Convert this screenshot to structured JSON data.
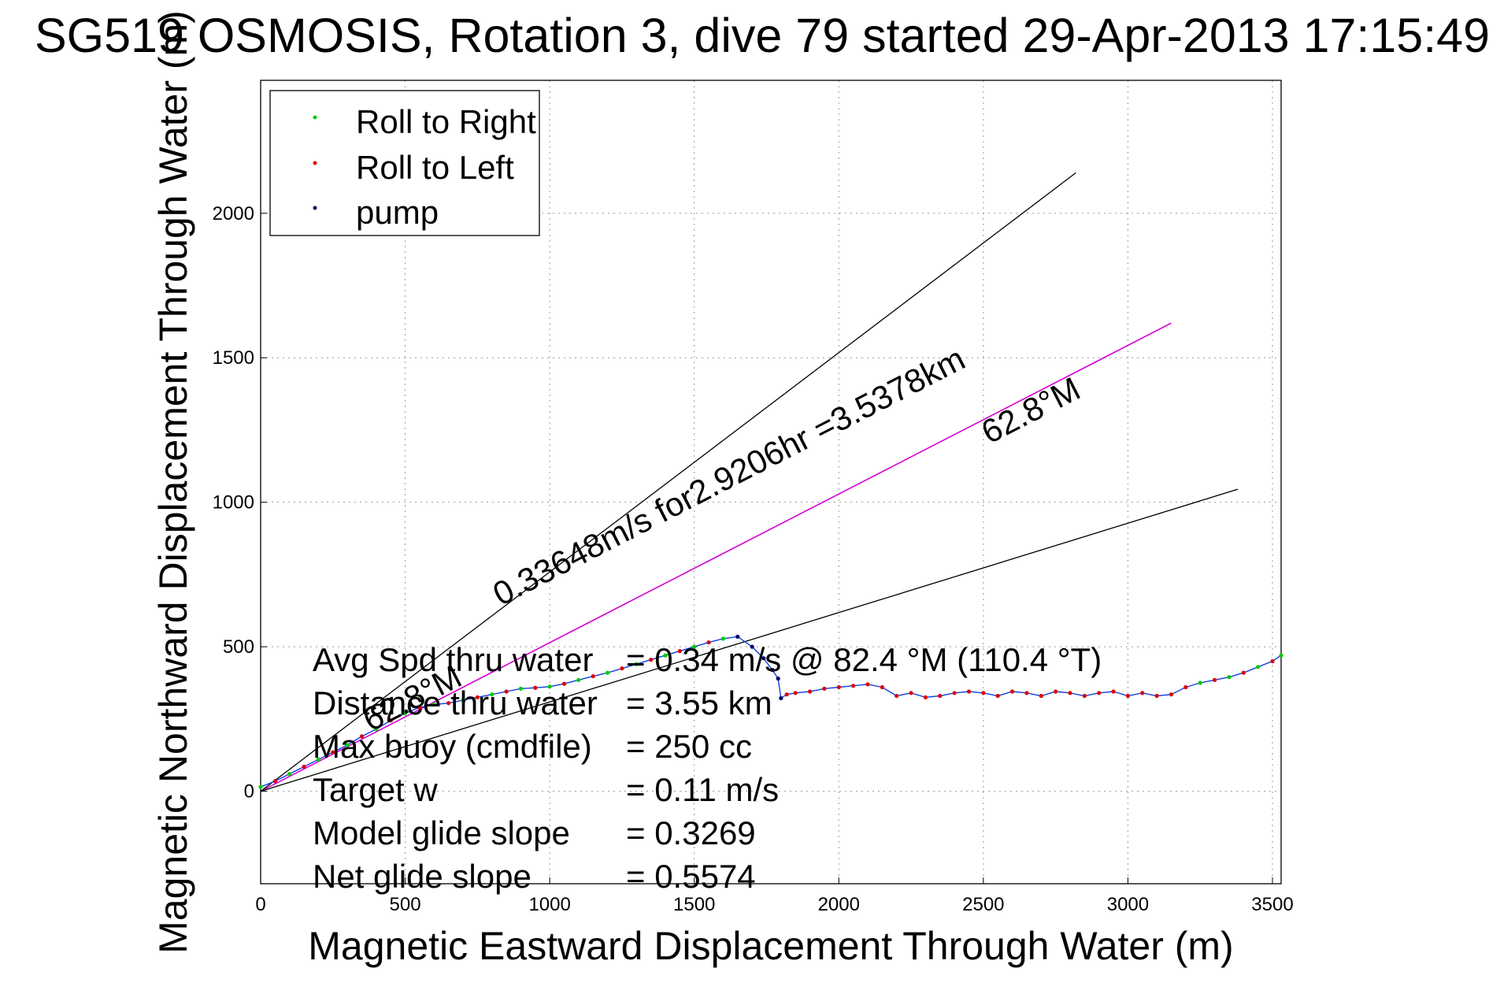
{
  "chart_data": {
    "type": "line",
    "title": "SG519 OSMOSIS, Rotation 3, dive 79 started 29-Apr-2013 17:15:49",
    "xlabel": "Magnetic Eastward Displacement Through Water (m)",
    "ylabel": "Magnetic Northward Displacement Through Water (m)",
    "xlim": [
      0,
      3530
    ],
    "ylim": [
      -320,
      2460
    ],
    "xticks": [
      0,
      500,
      1000,
      1500,
      2000,
      2500,
      3000,
      3500
    ],
    "yticks": [
      0,
      500,
      1000,
      1500,
      2000
    ],
    "xtick_labels": [
      "0",
      "500",
      "1000",
      "1500",
      "2000",
      "2500",
      "3000",
      "3500"
    ],
    "ytick_labels": [
      "0",
      "500",
      "1000",
      "1500",
      "2000"
    ],
    "grid": true,
    "legend_position": "top-left",
    "legend": [
      {
        "label": "Roll to Right",
        "color": "#00cc00"
      },
      {
        "label": "Roll to Left",
        "color": "#dd0000"
      },
      {
        "label": "pump",
        "color": "#000066"
      }
    ],
    "colors": {
      "track": "#1040e0",
      "bearing": "#d400d4",
      "rays": "#000000",
      "roll_right": "#00cc00",
      "roll_left": "#dd0000",
      "pump": "#000066"
    },
    "series": [
      {
        "name": "glider track",
        "x": [
          0,
          50,
          100,
          150,
          200,
          250,
          300,
          350,
          400,
          450,
          500,
          550,
          600,
          650,
          700,
          750,
          800,
          850,
          900,
          950,
          1000,
          1050,
          1100,
          1150,
          1200,
          1250,
          1300,
          1350,
          1400,
          1450,
          1500,
          1550,
          1600,
          1650,
          1700,
          1740,
          1770,
          1790,
          1800,
          1820,
          1850,
          1900,
          1950,
          2000,
          2050,
          2100,
          2150,
          2200,
          2250,
          2300,
          2350,
          2400,
          2450,
          2500,
          2550,
          2600,
          2650,
          2700,
          2750,
          2800,
          2850,
          2900,
          2950,
          3000,
          3050,
          3100,
          3150,
          3200,
          3250,
          3300,
          3350,
          3400,
          3450,
          3500,
          3530
        ],
        "y": [
          15,
          35,
          60,
          85,
          110,
          135,
          160,
          190,
          215,
          245,
          270,
          290,
          300,
          305,
          315,
          325,
          335,
          345,
          355,
          358,
          362,
          372,
          385,
          398,
          410,
          425,
          440,
          455,
          470,
          485,
          500,
          515,
          528,
          535,
          500,
          460,
          420,
          390,
          322,
          335,
          340,
          345,
          355,
          360,
          365,
          370,
          360,
          330,
          340,
          325,
          330,
          340,
          345,
          340,
          330,
          345,
          340,
          330,
          345,
          340,
          330,
          340,
          345,
          330,
          340,
          330,
          335,
          360,
          375,
          385,
          395,
          410,
          430,
          450,
          470
        ]
      },
      {
        "name": "bearing 62.8°M",
        "x": [
          0,
          3150
        ],
        "y": [
          0,
          1620
        ]
      },
      {
        "name": "cone upper",
        "x": [
          0,
          2820
        ],
        "y": [
          0,
          2140
        ]
      },
      {
        "name": "cone lower",
        "x": [
          0,
          3380
        ],
        "y": [
          0,
          1045
        ]
      }
    ],
    "annotations": [
      {
        "text": "62.8°M",
        "x": 2520,
        "y": 1200,
        "angle_deg": 27.2
      },
      {
        "text": "0.33648m/s for2.9206hr =3.5378km",
        "x": 830,
        "y": 640,
        "angle_deg": 27.2
      },
      {
        "text": "62.8°M",
        "x": 380,
        "y": 205,
        "angle_deg": 27.2
      }
    ],
    "stats": [
      {
        "label": "Avg Spd thru water",
        "value": "=  0.34 m/s @  82.4 °M (110.4 °T)"
      },
      {
        "label": "Distance thru water",
        "value": "=  3.55 km"
      },
      {
        "label": "Max buoy (cmdfile)",
        "value": "= 250 cc"
      },
      {
        "label": "Target w",
        "value": "= 0.11 m/s"
      },
      {
        "label": "Model glide slope",
        "value": "= 0.3269"
      },
      {
        "label": "Net glide slope",
        "value": "= 0.5574"
      }
    ]
  }
}
